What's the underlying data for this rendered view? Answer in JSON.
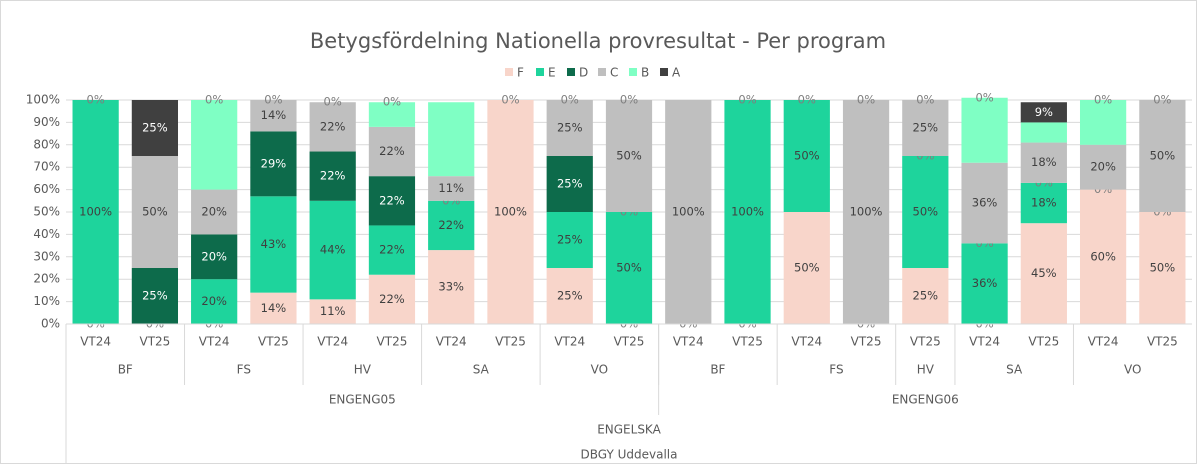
{
  "chart_data": {
    "type": "stacked_bar_100",
    "title": "Betygsfördelning Nationella provresultat - Per program",
    "categories": [
      "VT24",
      "VT25",
      "VT24",
      "VT25",
      "VT24",
      "VT25",
      "VT24",
      "VT25",
      "VT24",
      "VT25",
      "VT24",
      "VT25",
      "VT24",
      "VT25",
      "VT25",
      "VT24",
      "VT25",
      "VT24",
      "VT25"
    ],
    "category_levels": [
      [
        {
          "label": "BF",
          "span": 2
        },
        {
          "label": "FS",
          "span": 2
        },
        {
          "label": "HV",
          "span": 2
        },
        {
          "label": "SA",
          "span": 2
        },
        {
          "label": "VO",
          "span": 2
        },
        {
          "label": "BF",
          "span": 2
        },
        {
          "label": "FS",
          "span": 2
        },
        {
          "label": "HV",
          "span": 1
        },
        {
          "label": "SA",
          "span": 2
        },
        {
          "label": "VO",
          "span": 2
        }
      ],
      [
        {
          "label": "ENGENG05",
          "span": 10
        },
        {
          "label": "ENGENG06",
          "span": 9
        }
      ],
      [
        {
          "label": "ENGELSKA",
          "span": 19
        }
      ],
      [
        {
          "label": "DBGY Uddevalla",
          "span": 19
        }
      ]
    ],
    "series": [
      {
        "name": "F",
        "color": "#f8d5ca",
        "values": [
          0,
          null,
          0,
          14,
          11,
          22,
          33,
          100,
          25,
          0,
          0,
          0,
          50,
          0,
          25,
          0,
          45,
          60,
          50
        ],
        "value_labels": [
          "0%",
          null,
          "0%",
          "14%",
          "11%",
          "22%",
          "33%",
          "100%",
          "25%",
          "0%",
          "0%",
          "0%",
          "50%",
          "0%",
          "25%",
          "0%",
          "45%",
          "60%",
          "50%"
        ]
      },
      {
        "name": "E",
        "color": "#1ed49c",
        "values": [
          100,
          0,
          20,
          43,
          44,
          22,
          22,
          null,
          25,
          50,
          null,
          100,
          50,
          null,
          50,
          36,
          18,
          0,
          0
        ],
        "value_labels": [
          "100%",
          "0%",
          "20%",
          "43%",
          "44%",
          "22%",
          "22%",
          null,
          "25%",
          "50%",
          null,
          "100%",
          "50%",
          null,
          "50%",
          "36%",
          "18%",
          "0%",
          "0%"
        ]
      },
      {
        "name": "D",
        "color": "#0d6b4b",
        "values": [
          null,
          25,
          20,
          29,
          22,
          22,
          0,
          null,
          25,
          0,
          null,
          null,
          null,
          null,
          0,
          0,
          0,
          null,
          null
        ],
        "value_labels": [
          null,
          "25%",
          "20%",
          "29%",
          "22%",
          "22%",
          "0%",
          null,
          "25%",
          "0%",
          null,
          null,
          null,
          null,
          "0%",
          "0%",
          "0%",
          null,
          null
        ]
      },
      {
        "name": "C",
        "color": "#bfbfbf",
        "values": [
          null,
          50,
          20,
          14,
          22,
          22,
          11,
          null,
          25,
          50,
          100,
          null,
          null,
          100,
          25,
          36,
          18,
          20,
          50
        ],
        "value_labels": [
          null,
          "50%",
          "20%",
          "14%",
          "22%",
          "22%",
          "11%",
          null,
          "25%",
          "50%",
          "100%",
          null,
          null,
          "100%",
          "25%",
          "36%",
          "18%",
          "20%",
          "50%"
        ]
      },
      {
        "name": "B",
        "color": "#7fffc4",
        "values": [
          0,
          null,
          40,
          null,
          null,
          11,
          33,
          null,
          null,
          null,
          null,
          0,
          0,
          null,
          null,
          29,
          9,
          20,
          null
        ],
        "value_labels": [
          "0%",
          null,
          null,
          null,
          null,
          null,
          null,
          null,
          null,
          null,
          null,
          "0%",
          "0%",
          null,
          null,
          null,
          null,
          null,
          null
        ]
      },
      {
        "name": "A",
        "color": "#404040",
        "values": [
          null,
          25,
          0,
          0,
          0,
          0,
          null,
          0,
          0,
          0,
          null,
          null,
          null,
          0,
          0,
          0,
          9,
          0,
          0
        ],
        "value_labels": [
          null,
          "25%",
          "0%",
          "0%",
          "0%",
          "0%",
          null,
          "0%",
          "0%",
          "0%",
          null,
          null,
          null,
          "0%",
          "0%",
          "0%",
          "9%",
          "0%",
          "0%"
        ]
      }
    ],
    "ylim": [
      0,
      100
    ],
    "yticks": [
      {
        "value": 0,
        "label": "0%"
      },
      {
        "value": 10,
        "label": "10%"
      },
      {
        "value": 20,
        "label": "20%"
      },
      {
        "value": 30,
        "label": "30%"
      },
      {
        "value": 40,
        "label": "40%"
      },
      {
        "value": 50,
        "label": "50%"
      },
      {
        "value": 60,
        "label": "60%"
      },
      {
        "value": 70,
        "label": "70%"
      },
      {
        "value": 80,
        "label": "80%"
      },
      {
        "value": 90,
        "label": "90%"
      },
      {
        "value": 100,
        "label": "100%"
      }
    ],
    "grid": true,
    "legend": "top"
  }
}
